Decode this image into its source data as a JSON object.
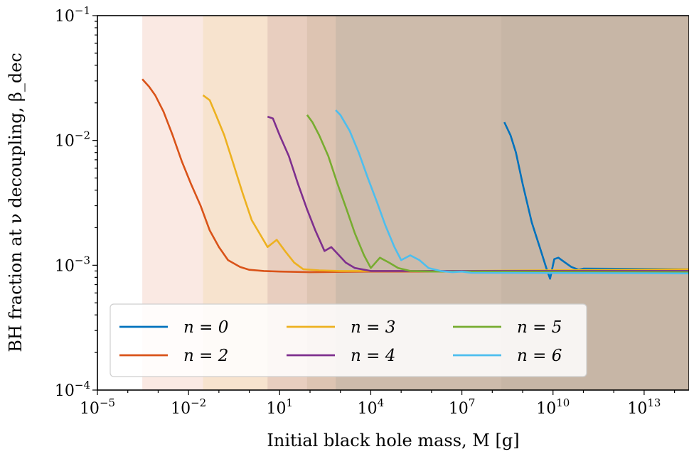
{
  "chart_data": {
    "type": "line",
    "xlabel": "Initial black hole mass, M [g]",
    "ylabel": "BH fraction at ν decoupling, β_dec",
    "xscale": "log",
    "yscale": "log",
    "xlim": [
      1e-05,
      300000000000000.0
    ],
    "ylim": [
      0.0001,
      0.1
    ],
    "x_ticks": [
      {
        "value": 1e-05,
        "base": "10",
        "exp": "−5"
      },
      {
        "value": 0.01,
        "base": "10",
        "exp": "−2"
      },
      {
        "value": 10.0,
        "base": "10",
        "exp": "1"
      },
      {
        "value": 10000.0,
        "base": "10",
        "exp": "4"
      },
      {
        "value": 10000000.0,
        "base": "10",
        "exp": "7"
      },
      {
        "value": 10000000000.0,
        "base": "10",
        "exp": "10"
      },
      {
        "value": 10000000000000.0,
        "base": "10",
        "exp": "13"
      }
    ],
    "y_ticks": [
      {
        "value": 0.0001,
        "base": "10",
        "exp": "−4"
      },
      {
        "value": 0.001,
        "base": "10",
        "exp": "−3"
      },
      {
        "value": 0.01,
        "base": "10",
        "exp": "−2"
      },
      {
        "value": 0.1,
        "base": "10",
        "exp": "−1"
      }
    ],
    "legend_position": "bottom-left",
    "legend_columns": 3,
    "series": [
      {
        "name": "n = 0",
        "color": "#0072BD",
        "shade": "#8e9e9a",
        "shade_start": 200000000.0,
        "points": [
          [
            250000000.0,
            0.014
          ],
          [
            400000000.0,
            0.011
          ],
          [
            600000000.0,
            0.008
          ],
          [
            1000000000.0,
            0.0045
          ],
          [
            2000000000.0,
            0.0022
          ],
          [
            4000000000.0,
            0.0013
          ],
          [
            6000000000.0,
            0.00095
          ],
          [
            8000000000.0,
            0.00078
          ],
          [
            11000000000.0,
            0.00112
          ],
          [
            15000000000.0,
            0.00115
          ],
          [
            25000000000.0,
            0.00105
          ],
          [
            40000000000.0,
            0.00097
          ],
          [
            70000000000.0,
            0.00092
          ],
          [
            100000000000.0,
            0.00094
          ],
          [
            300000000000000.0,
            0.00093
          ]
        ]
      },
      {
        "name": "n = 2",
        "color": "#D95319",
        "shade": "#f0b7a2",
        "shade_start": 0.0003,
        "points": [
          [
            0.0003,
            0.031
          ],
          [
            0.0005,
            0.027
          ],
          [
            0.0008,
            0.023
          ],
          [
            0.0015,
            0.017
          ],
          [
            0.003,
            0.011
          ],
          [
            0.006,
            0.0068
          ],
          [
            0.012,
            0.0045
          ],
          [
            0.025,
            0.003
          ],
          [
            0.05,
            0.0019
          ],
          [
            0.1,
            0.0014
          ],
          [
            0.2,
            0.0011
          ],
          [
            0.5,
            0.00097
          ],
          [
            1,
            0.00092
          ],
          [
            3,
            0.0009
          ],
          [
            10,
            0.00089
          ],
          [
            100,
            0.00088
          ],
          [
            10000.0,
            0.00089
          ],
          [
            1000000.0,
            0.00089
          ],
          [
            300000000000000.0,
            0.00089
          ]
        ]
      },
      {
        "name": "n = 3",
        "color": "#EDB120",
        "shade": "#f3d6a0",
        "shade_start": 0.03,
        "points": [
          [
            0.03,
            0.023
          ],
          [
            0.05,
            0.021
          ],
          [
            0.08,
            0.016
          ],
          [
            0.15,
            0.011
          ],
          [
            0.3,
            0.0065
          ],
          [
            0.6,
            0.0038
          ],
          [
            1.2,
            0.0023
          ],
          [
            2.5,
            0.0017
          ],
          [
            4,
            0.0014
          ],
          [
            8,
            0.0016
          ],
          [
            15,
            0.0013
          ],
          [
            30,
            0.00105
          ],
          [
            60,
            0.00093
          ],
          [
            200,
            0.00091
          ],
          [
            1000,
            0.0009
          ],
          [
            100000.0,
            0.0009
          ],
          [
            10000000.0,
            0.0009
          ],
          [
            300000000000000.0,
            0.00093
          ]
        ]
      },
      {
        "name": "n = 4",
        "color": "#7E2F8E",
        "shade": "#c8a09b",
        "shade_start": 4,
        "points": [
          [
            4,
            0.0155
          ],
          [
            6,
            0.015
          ],
          [
            10,
            0.011
          ],
          [
            20,
            0.0075
          ],
          [
            40,
            0.0045
          ],
          [
            80,
            0.0028
          ],
          [
            150,
            0.0019
          ],
          [
            300,
            0.0013
          ],
          [
            500,
            0.0014
          ],
          [
            900,
            0.0012
          ],
          [
            1500,
            0.00105
          ],
          [
            3000,
            0.00095
          ],
          [
            10000.0,
            0.0009
          ],
          [
            100000.0,
            0.0009
          ],
          [
            10000000.0,
            0.0009
          ],
          [
            300000000000000.0,
            0.0009
          ]
        ]
      },
      {
        "name": "n = 5",
        "color": "#77AC30",
        "shade": "#c2ad94",
        "shade_start": 80,
        "points": [
          [
            80,
            0.016
          ],
          [
            120,
            0.014
          ],
          [
            200,
            0.011
          ],
          [
            400,
            0.0075
          ],
          [
            800,
            0.0045
          ],
          [
            1600,
            0.0028
          ],
          [
            3000,
            0.0018
          ],
          [
            6000,
            0.0012
          ],
          [
            10000,
            0.00095
          ],
          [
            20000,
            0.00115
          ],
          [
            40000,
            0.00105
          ],
          [
            80000,
            0.00095
          ],
          [
            200000.0,
            0.0009
          ],
          [
            1000000.0,
            0.00089
          ],
          [
            10000000.0,
            0.00089
          ],
          [
            300000000000000.0,
            0.00088
          ]
        ]
      },
      {
        "name": "n = 6",
        "color": "#4DBEEE",
        "shade": "#a8a69c",
        "shade_start": 700,
        "points": [
          [
            700,
            0.0175
          ],
          [
            1000,
            0.016
          ],
          [
            2000,
            0.012
          ],
          [
            4000,
            0.008
          ],
          [
            8000,
            0.005
          ],
          [
            16000,
            0.0032
          ],
          [
            30000,
            0.0021
          ],
          [
            60000,
            0.0014
          ],
          [
            100000.0,
            0.0011
          ],
          [
            200000.0,
            0.0012
          ],
          [
            400000.0,
            0.0011
          ],
          [
            800000.0,
            0.00095
          ],
          [
            2000000.0,
            0.0009
          ],
          [
            5000000.0,
            0.00088
          ],
          [
            10000000.0,
            0.00089
          ],
          [
            20000000.0,
            0.00087
          ],
          [
            300000000000000.0,
            0.00086
          ]
        ]
      }
    ]
  }
}
